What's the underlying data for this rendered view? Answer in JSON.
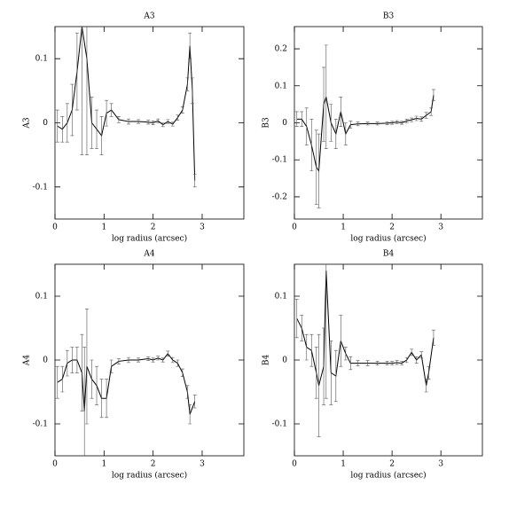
{
  "chart_data": [
    {
      "type": "line",
      "title": "A3",
      "x_label": "log radius (arcsec)",
      "y_label": "A3",
      "color": "#000000",
      "xlim": [
        0,
        3.85
      ],
      "ylim": [
        -0.15,
        0.15
      ],
      "xticks": [
        0,
        1,
        2,
        3
      ],
      "yticks": [
        -0.1,
        0,
        0.1
      ],
      "x": [
        0.05,
        0.15,
        0.25,
        0.35,
        0.45,
        0.55,
        0.65,
        0.75,
        0.85,
        0.95,
        1.05,
        1.15,
        1.3,
        1.5,
        1.7,
        1.9,
        2.0,
        2.1,
        2.2,
        2.3,
        2.4,
        2.5,
        2.6,
        2.7,
        2.75,
        2.8,
        2.85
      ],
      "values": [
        -0.005,
        -0.01,
        0.0,
        0.02,
        0.08,
        0.15,
        0.1,
        0.0,
        -0.01,
        -0.02,
        0.015,
        0.02,
        0.005,
        0.002,
        0.002,
        0.001,
        0.0,
        0.003,
        -0.003,
        0.002,
        -0.002,
        0.008,
        0.02,
        0.06,
        0.12,
        0.05,
        -0.09
      ],
      "errors": [
        0.025,
        0.02,
        0.03,
        0.04,
        0.06,
        0.2,
        0.15,
        0.04,
        0.03,
        0.03,
        0.02,
        0.01,
        0.005,
        0.004,
        0.003,
        0.003,
        0.003,
        0.003,
        0.003,
        0.003,
        0.003,
        0.004,
        0.005,
        0.01,
        0.02,
        0.02,
        0.01
      ]
    },
    {
      "type": "line",
      "title": "B3",
      "x_label": "log radius (arcsec)",
      "y_label": "B3",
      "color": "#000000",
      "xlim": [
        0,
        3.85
      ],
      "ylim": [
        -0.26,
        0.26
      ],
      "xticks": [
        0,
        1,
        2,
        3
      ],
      "yticks": [
        -0.2,
        -0.1,
        0,
        0.1,
        0.2
      ],
      "x": [
        0.05,
        0.15,
        0.25,
        0.35,
        0.45,
        0.5,
        0.6,
        0.65,
        0.75,
        0.85,
        0.95,
        1.05,
        1.15,
        1.3,
        1.5,
        1.7,
        1.9,
        2.0,
        2.1,
        2.2,
        2.3,
        2.4,
        2.5,
        2.6,
        2.7,
        2.8,
        2.85
      ],
      "values": [
        0.01,
        0.01,
        -0.01,
        -0.06,
        -0.12,
        -0.13,
        0.05,
        0.07,
        0.0,
        -0.03,
        0.03,
        -0.03,
        -0.005,
        -0.003,
        -0.002,
        -0.002,
        -0.001,
        0.0,
        0.002,
        0.0,
        0.005,
        0.008,
        0.012,
        0.01,
        0.02,
        0.03,
        0.075
      ],
      "errors": [
        0.02,
        0.02,
        0.05,
        0.07,
        0.1,
        0.1,
        0.1,
        0.14,
        0.05,
        0.04,
        0.04,
        0.03,
        0.01,
        0.005,
        0.004,
        0.004,
        0.004,
        0.004,
        0.004,
        0.004,
        0.005,
        0.005,
        0.006,
        0.006,
        0.008,
        0.01,
        0.015
      ]
    },
    {
      "type": "line",
      "title": "A4",
      "x_label": "log radius (arcsec)",
      "y_label": "A4",
      "color": "#000000",
      "xlim": [
        0,
        3.85
      ],
      "ylim": [
        -0.15,
        0.15
      ],
      "xticks": [
        0,
        1,
        2,
        3
      ],
      "yticks": [
        -0.1,
        0,
        0.1
      ],
      "x": [
        0.05,
        0.15,
        0.25,
        0.35,
        0.45,
        0.55,
        0.6,
        0.65,
        0.75,
        0.85,
        0.95,
        1.05,
        1.15,
        1.3,
        1.5,
        1.7,
        1.9,
        2.0,
        2.1,
        2.2,
        2.3,
        2.4,
        2.5,
        2.6,
        2.7,
        2.75,
        2.85
      ],
      "values": [
        -0.035,
        -0.03,
        -0.005,
        0.0,
        0.0,
        -0.02,
        -0.08,
        -0.01,
        -0.03,
        -0.04,
        -0.06,
        -0.06,
        -0.01,
        -0.002,
        0.0,
        0.0,
        0.002,
        0.0,
        0.003,
        0.0,
        0.01,
        0.0,
        -0.005,
        -0.02,
        -0.05,
        -0.085,
        -0.065
      ],
      "errors": [
        0.025,
        0.02,
        0.02,
        0.02,
        0.02,
        0.06,
        0.1,
        0.09,
        0.03,
        0.03,
        0.03,
        0.03,
        0.01,
        0.004,
        0.004,
        0.003,
        0.003,
        0.003,
        0.003,
        0.003,
        0.004,
        0.004,
        0.005,
        0.006,
        0.01,
        0.015,
        0.01
      ]
    },
    {
      "type": "line",
      "title": "B4",
      "x_label": "log radius (arcsec)",
      "y_label": "B4",
      "color": "#000000",
      "xlim": [
        0,
        3.85
      ],
      "ylim": [
        -0.15,
        0.15
      ],
      "xticks": [
        0,
        1,
        2,
        3
      ],
      "yticks": [
        -0.1,
        0,
        0.1
      ],
      "x": [
        0.05,
        0.15,
        0.25,
        0.35,
        0.45,
        0.5,
        0.6,
        0.65,
        0.75,
        0.85,
        0.95,
        1.05,
        1.15,
        1.3,
        1.5,
        1.7,
        1.9,
        2.0,
        2.1,
        2.2,
        2.3,
        2.4,
        2.5,
        2.6,
        2.7,
        2.75,
        2.85
      ],
      "values": [
        0.065,
        0.05,
        0.02,
        0.015,
        -0.02,
        -0.04,
        -0.01,
        0.14,
        -0.02,
        -0.025,
        0.03,
        0.01,
        -0.005,
        -0.005,
        -0.005,
        -0.005,
        -0.005,
        -0.005,
        -0.004,
        -0.005,
        0.0,
        0.012,
        0.0,
        0.008,
        -0.04,
        -0.02,
        0.035
      ],
      "errors": [
        0.03,
        0.02,
        0.02,
        0.025,
        0.04,
        0.08,
        0.06,
        0.2,
        0.05,
        0.04,
        0.04,
        0.01,
        0.01,
        0.004,
        0.004,
        0.003,
        0.003,
        0.003,
        0.003,
        0.003,
        0.004,
        0.005,
        0.005,
        0.005,
        0.01,
        0.01,
        0.012
      ]
    }
  ]
}
